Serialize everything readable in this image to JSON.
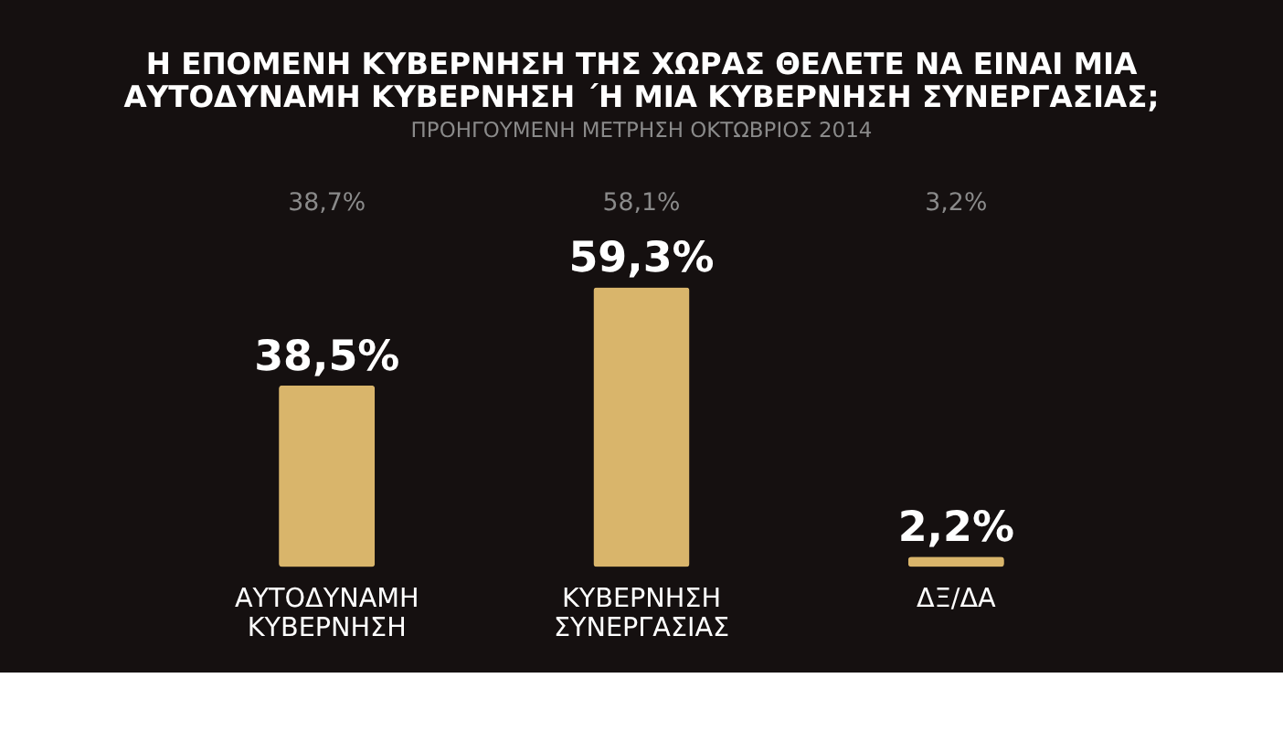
{
  "chart_data": {
    "type": "bar",
    "title": "Η ΕΠΟΜΕΝΗ ΚΥΒΕΡΝΗΣΗ ΤΗΣ ΧΩΡΑΣ ΘΕΛΕΤΕ ΝΑ ΕΙΝΑΙ ΜΙΑ ΑΥΤΟΔΥΝΑΜΗ ΚΥΒΕΡΝΗΣΗ ΄Η ΜΙΑ ΚΥΒΕΡΝΗΣΗ ΣΥΝΕΡΓΑΣΙΑΣ;",
    "subtitle": "ΠΡΟΗΓΟΥΜΕΝΗ ΜΕΤΡΗΣΗ ΟΚΤΩΒΡΙΟΣ 2014",
    "categories": [
      "ΑΥΤΟΔΥΝΑΜΗ ΚΥΒΕΡΝΗΣΗ",
      "ΚΥΒΕΡΝΗΣΗ ΣΥΝΕΡΓΑΣΙΑΣ",
      "ΔΞ/ΔΑ"
    ],
    "values": [
      38.5,
      59.3,
      2.2
    ],
    "value_labels": [
      "38,5%",
      "59,3%",
      "2,2%"
    ],
    "color": "#d9b56b",
    "annotations": [
      "38,7%",
      "58,1%",
      "3,2%"
    ],
    "grid": false
  }
}
